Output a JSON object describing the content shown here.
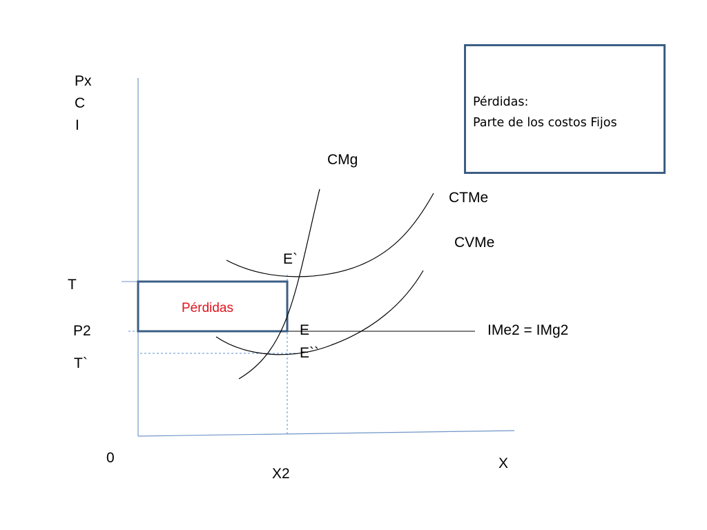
{
  "colors": {
    "axis": "#6f95c8",
    "curve": "#000000",
    "loss_rect": "#3b5e85",
    "loss_label": "#e0141e",
    "guide_dashed": "#5b8fd6",
    "note_border": "#3b5e85"
  },
  "axes": {
    "y_labels": [
      "Px",
      "C",
      "I"
    ],
    "origin": "0",
    "x_label": "X"
  },
  "levels": {
    "T": "T",
    "P2": "P2",
    "T_prime": "T`",
    "X2": "X2"
  },
  "curves": {
    "cmg": "CMg",
    "ctme": "CTMe",
    "cvme": "CVMe",
    "demand": "IMe2 = IMg2"
  },
  "points": {
    "e_prime": "E`",
    "e": "E",
    "e_double_prime": "E``"
  },
  "loss_area": {
    "label": "Pérdidas"
  },
  "note": {
    "title": "Pérdidas:",
    "body": "Parte de los costos Fijos"
  }
}
